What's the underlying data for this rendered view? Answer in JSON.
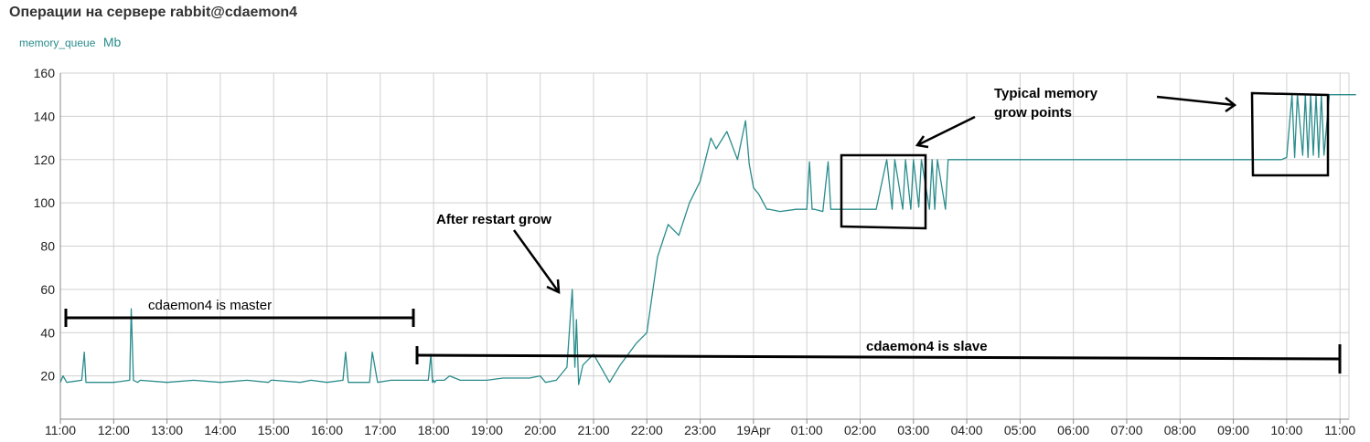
{
  "title": "Операции на сервере rabbit@cdaemon4",
  "legend": {
    "series_name": "memory_queue",
    "unit": "Mb"
  },
  "colors": {
    "line": "#2a8b8b",
    "grid": "#d0d0d0",
    "annotation": "#000000",
    "text": "#222222"
  },
  "chart_data": {
    "type": "line",
    "ylim": [
      0,
      160
    ],
    "y_ticks": [
      20,
      40,
      60,
      80,
      100,
      120,
      140,
      160
    ],
    "x_tick_labels": [
      "11:00",
      "12:00",
      "13:00",
      "14:00",
      "15:00",
      "16:00",
      "17:00",
      "18:00",
      "19:00",
      "20:00",
      "21:00",
      "22:00",
      "23:00",
      "19Apr",
      "01:00",
      "02:00",
      "03:00",
      "04:00",
      "05:00",
      "06:00",
      "07:00",
      "08:00",
      "09:00",
      "10:00",
      "11:00"
    ],
    "grid": true,
    "series": [
      {
        "x": [
          0,
          0.05,
          0.12,
          0.4,
          0.45,
          0.48,
          0.55,
          1.0,
          1.3,
          1.33,
          1.37,
          1.45,
          1.5,
          2.0,
          2.5,
          3.0,
          3.5,
          3.9,
          3.95,
          4.0,
          4.5,
          4.7,
          5.0,
          5.3,
          5.35,
          5.4,
          5.8,
          5.85,
          5.95,
          6.2,
          6.6,
          6.9,
          6.95,
          6.98,
          7.0,
          7.02,
          7.05,
          7.1,
          7.2,
          7.3,
          7.5,
          7.7,
          8.0,
          8.3,
          8.5,
          8.8,
          9.0,
          9.1,
          9.3,
          9.5,
          9.6,
          9.65,
          9.68,
          9.72,
          9.8,
          10.0,
          10.3,
          10.5,
          10.8,
          11.0,
          11.2,
          11.4,
          11.6,
          11.8,
          12.0,
          12.1,
          12.2,
          12.3,
          12.5,
          12.7,
          12.85,
          12.92,
          13.0,
          13.1,
          13.25,
          13.3,
          13.5,
          13.8,
          14.0,
          14.05,
          14.1,
          14.15,
          14.3,
          14.4,
          14.45,
          14.5,
          15.0,
          15.3,
          15.5,
          15.6,
          15.65,
          15.8,
          15.85,
          15.95,
          16.0,
          16.1,
          16.15,
          16.3,
          16.35,
          16.4,
          16.45,
          16.6,
          16.65,
          16.7,
          17.0,
          18.0,
          20.0,
          22.0,
          22.9,
          23.0,
          23.1,
          23.15,
          23.2,
          23.3,
          23.35,
          23.4,
          23.45,
          23.5,
          23.55,
          23.6,
          23.65,
          23.7,
          23.8,
          23.9,
          24.0,
          24.3
        ],
        "values": [
          17,
          20,
          17,
          18,
          31,
          17,
          17,
          17,
          18,
          51,
          18,
          17,
          18,
          17,
          18,
          17,
          18,
          17,
          18,
          18,
          17,
          18,
          17,
          18,
          31,
          17,
          17,
          31,
          17,
          18,
          18,
          18,
          30,
          17,
          18,
          17,
          18,
          18,
          18,
          20,
          18,
          18,
          18,
          19,
          19,
          19,
          20,
          17,
          18,
          24,
          60,
          24,
          46,
          16,
          25,
          30,
          17,
          25,
          35,
          40,
          75,
          90,
          85,
          100,
          110,
          120,
          130,
          125,
          133,
          120,
          138,
          118,
          107,
          104,
          97,
          97,
          96,
          97,
          97,
          119,
          97,
          97,
          96,
          119,
          97,
          97,
          97,
          97,
          120,
          97,
          120,
          97,
          120,
          97,
          120,
          98,
          120,
          97,
          120,
          97,
          120,
          97,
          120,
          120,
          120,
          120,
          120,
          120,
          120,
          121,
          150,
          121,
          150,
          122,
          150,
          121,
          150,
          122,
          150,
          121,
          150,
          122,
          150,
          150,
          150,
          150
        ]
      }
    ],
    "annotations": {
      "master_label": "cdaemon4 is master",
      "slave_label": "cdaemon4 is slave",
      "restart_label": "After restart grow",
      "typical_label_line1": "Typical memory",
      "typical_label_line2": "grow points"
    }
  }
}
